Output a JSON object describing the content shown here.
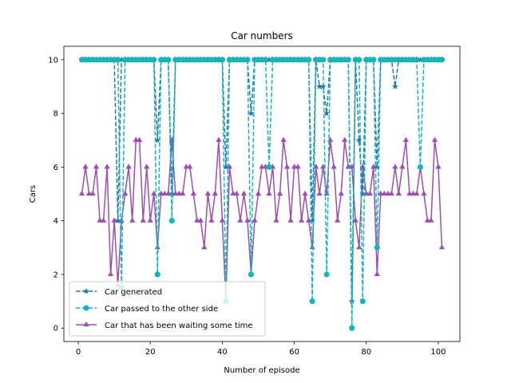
{
  "chart_data": {
    "type": "line",
    "title": "Car numbers",
    "xlabel": "Number of episode",
    "ylabel": "Cars",
    "xlim": [
      -4,
      106
    ],
    "ylim": [
      -0.5,
      10.5
    ],
    "xticks": [
      0,
      20,
      40,
      60,
      80,
      100
    ],
    "yticks": [
      0,
      2,
      4,
      6,
      8,
      10
    ],
    "grid": false,
    "legend_position": "lower-left",
    "x": [
      1,
      2,
      3,
      4,
      5,
      6,
      7,
      8,
      9,
      10,
      11,
      12,
      13,
      14,
      15,
      16,
      17,
      18,
      19,
      20,
      21,
      22,
      23,
      24,
      25,
      26,
      27,
      28,
      29,
      30,
      31,
      32,
      33,
      34,
      35,
      36,
      37,
      38,
      39,
      40,
      41,
      42,
      43,
      44,
      45,
      46,
      47,
      48,
      49,
      50,
      51,
      52,
      53,
      54,
      55,
      56,
      57,
      58,
      59,
      60,
      61,
      62,
      63,
      64,
      65,
      66,
      67,
      68,
      69,
      70,
      71,
      72,
      73,
      74,
      75,
      76,
      77,
      78,
      79,
      80,
      81,
      82,
      83,
      84,
      85,
      86,
      87,
      88,
      89,
      90,
      91,
      92,
      93,
      94,
      95,
      96,
      97,
      98,
      99,
      100,
      101
    ],
    "series": [
      {
        "name": "Car generated",
        "color": "#1f77b4",
        "marker": "star",
        "linestyle": "dashed",
        "values": [
          10,
          10,
          10,
          10,
          10,
          10,
          10,
          10,
          10,
          10,
          4,
          10,
          10,
          10,
          10,
          10,
          10,
          10,
          10,
          10,
          10,
          7,
          10,
          10,
          10,
          5,
          10,
          10,
          10,
          10,
          10,
          10,
          10,
          10,
          10,
          10,
          10,
          10,
          10,
          10,
          6,
          10,
          10,
          10,
          10,
          10,
          10,
          8,
          10,
          10,
          10,
          10,
          10,
          10,
          10,
          10,
          10,
          10,
          10,
          10,
          10,
          10,
          10,
          10,
          4,
          10,
          9,
          9,
          8,
          10,
          10,
          10,
          10,
          10,
          10,
          1,
          10,
          7,
          5,
          10,
          10,
          10,
          6,
          10,
          10,
          10,
          10,
          9,
          10,
          10,
          10,
          10,
          10,
          10,
          10,
          10,
          10,
          10,
          10,
          10,
          10
        ]
      },
      {
        "name": "Car passed to the other side",
        "color": "#17b3b8",
        "marker": "circle",
        "linestyle": "dashed",
        "values": [
          10,
          10,
          10,
          10,
          10,
          10,
          10,
          10,
          10,
          10,
          10,
          1.5,
          10,
          10,
          10,
          10,
          10,
          10,
          10,
          10,
          10,
          2,
          10,
          10,
          10,
          4,
          10,
          10,
          10,
          10,
          10,
          10,
          10,
          10,
          10,
          10,
          10,
          10,
          10,
          10,
          1,
          10,
          10,
          10,
          10,
          10,
          10,
          2,
          10,
          10,
          10,
          10,
          6,
          10,
          10,
          10,
          10,
          10,
          10,
          10,
          10,
          10,
          10,
          10,
          1,
          10,
          10,
          10,
          2,
          10,
          10,
          10,
          10,
          10,
          10,
          0,
          10,
          10,
          1,
          10,
          10,
          10,
          3,
          10,
          10,
          10,
          10,
          10,
          10,
          10,
          10,
          10,
          10,
          10,
          6,
          10,
          10,
          10,
          10,
          10,
          10
        ]
      },
      {
        "name": "Car that has been waiting some time",
        "color": "#9b4fb0",
        "marker": "triangle",
        "linestyle": "solid",
        "values": [
          5,
          6,
          5,
          5,
          6,
          4,
          4,
          6,
          2,
          4,
          1.6,
          4,
          5,
          6,
          4,
          7,
          7,
          4,
          6,
          4,
          5,
          3,
          5,
          5,
          5,
          7,
          5,
          5,
          5,
          6,
          6,
          5,
          4,
          4,
          3,
          5,
          4,
          5,
          7,
          4,
          1,
          6,
          5,
          5,
          4,
          5,
          4,
          2,
          4,
          5,
          6,
          6,
          5,
          6,
          4,
          5,
          7,
          6,
          4,
          6,
          6,
          4,
          5,
          4,
          3,
          6,
          5,
          6,
          5,
          7,
          6,
          4,
          5,
          7,
          6,
          6,
          4,
          3,
          6,
          5,
          5,
          6,
          2,
          5,
          5,
          5,
          5,
          6,
          5,
          6,
          7,
          5,
          5,
          5,
          6,
          5,
          4,
          4,
          7,
          6,
          3
        ]
      }
    ]
  }
}
